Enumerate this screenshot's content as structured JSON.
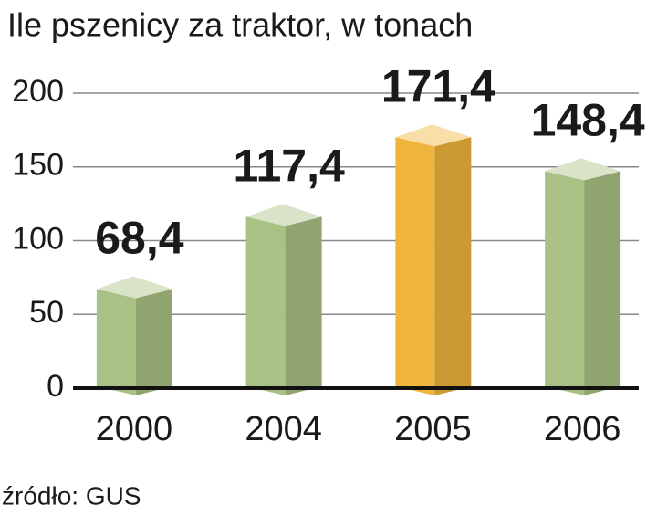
{
  "chart_data": {
    "type": "bar",
    "title": "Ile pszenicy za traktor, w tonach",
    "categories": [
      "2000",
      "2004",
      "2005",
      "2006"
    ],
    "values": [
      68.4,
      117.4,
      171.4,
      148.4
    ],
    "value_labels": [
      "68,4",
      "117,4",
      "171,4",
      "148,4"
    ],
    "colors": [
      "#a9c184",
      "#a9c184",
      "#f0b53c",
      "#a9c184"
    ],
    "label_colors": [
      "#1a1a1a",
      "#1a1a1a",
      "#c8102e",
      "#1a1a1a"
    ],
    "ylim": [
      0,
      200
    ],
    "yticks": [
      0,
      50,
      100,
      150,
      200
    ],
    "grid": true,
    "source": "źródło: GUS"
  }
}
